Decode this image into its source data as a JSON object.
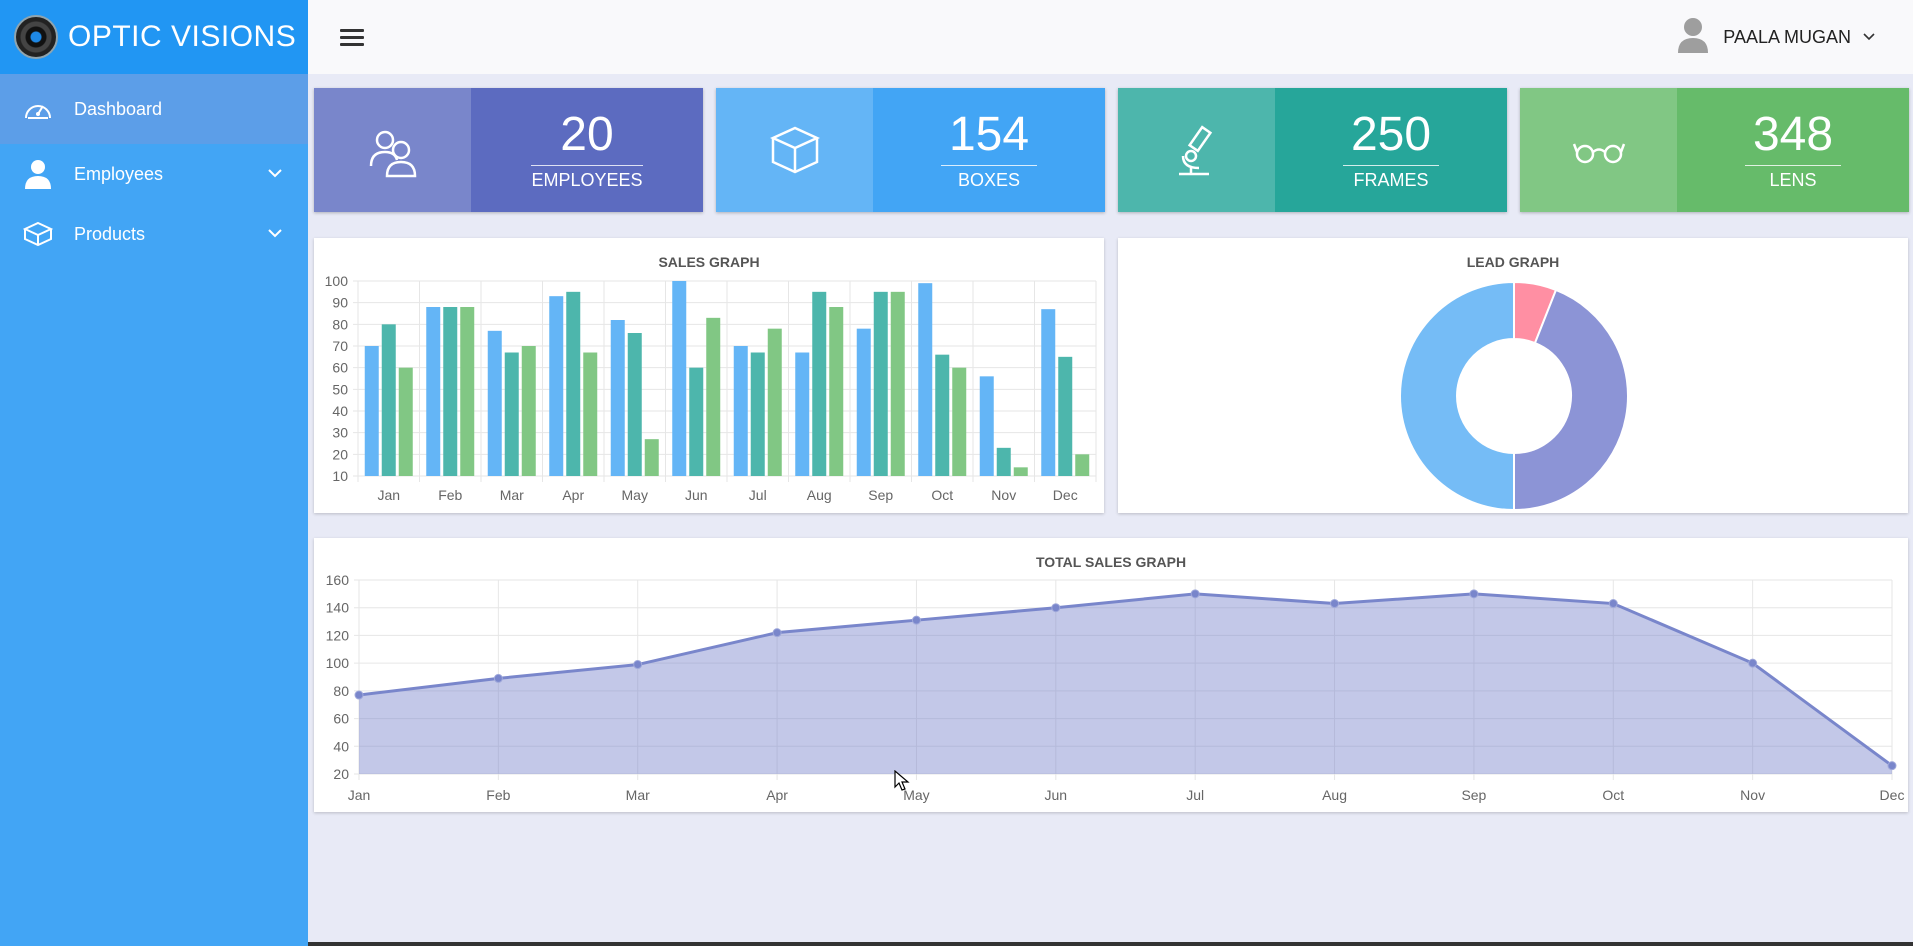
{
  "brand": {
    "name": "OPTIC VISIONS"
  },
  "sidebar": {
    "items": [
      {
        "label": "Dashboard",
        "icon": "speedometer-icon"
      },
      {
        "label": "Employees",
        "icon": "person-icon"
      },
      {
        "label": "Products",
        "icon": "box-icon"
      }
    ]
  },
  "topbar": {
    "user_name": "PAALA MUGAN"
  },
  "stats": [
    {
      "value": "20",
      "label": "EMPLOYEES",
      "icon": "users-icon",
      "icon_bg": "#7986cb",
      "bg": "#5c6bc0"
    },
    {
      "value": "154",
      "label": "BOXES",
      "icon": "cube-icon",
      "icon_bg": "#64b5f6",
      "bg": "#42a5f5"
    },
    {
      "value": "250",
      "label": "FRAMES",
      "icon": "microscope-icon",
      "icon_bg": "#4db6ac",
      "bg": "#26a69a"
    },
    {
      "value": "348",
      "label": "LENS",
      "icon": "glasses-icon",
      "icon_bg": "#81c784",
      "bg": "#66bb6a"
    }
  ],
  "chart_data": [
    {
      "type": "bar",
      "title": "SALES GRAPH",
      "categories": [
        "Jan",
        "Feb",
        "Mar",
        "Apr",
        "May",
        "Jun",
        "Jul",
        "Aug",
        "Sep",
        "Oct",
        "Nov",
        "Dec"
      ],
      "series": [
        {
          "values": [
            70,
            88,
            77,
            93,
            82,
            100,
            70,
            67,
            78,
            99,
            56,
            87
          ],
          "color": "#64b5f6"
        },
        {
          "values": [
            80,
            88,
            67,
            95,
            76,
            60,
            67,
            95,
            95,
            66,
            23,
            65
          ],
          "color": "#4db6ac"
        },
        {
          "values": [
            60,
            88,
            70,
            67,
            27,
            83,
            78,
            88,
            95,
            60,
            14,
            20
          ],
          "color": "#81c784"
        }
      ],
      "ylim": [
        10,
        100
      ],
      "yticks": [
        10,
        20,
        30,
        40,
        50,
        60,
        70,
        80,
        90,
        100
      ],
      "grid": true
    },
    {
      "type": "pie",
      "title": "LEAD GRAPH",
      "donut": true,
      "slices": [
        {
          "value": 6,
          "color": "#ff8fa3"
        },
        {
          "value": 44,
          "color": "#8c94d6"
        },
        {
          "value": 50,
          "color": "#75bcf6"
        }
      ]
    },
    {
      "type": "area",
      "title": "TOTAL SALES GRAPH",
      "x": [
        "Jan",
        "Feb",
        "Mar",
        "Apr",
        "May",
        "Jun",
        "Jul",
        "Aug",
        "Sep",
        "Oct",
        "Nov",
        "Dec"
      ],
      "series": [
        {
          "values": [
            77,
            89,
            99,
            122,
            131,
            140,
            150,
            143,
            150,
            143,
            100,
            26
          ],
          "color": "#7986cb"
        }
      ],
      "ylim": [
        20,
        160
      ],
      "yticks": [
        20,
        40,
        60,
        80,
        100,
        120,
        140,
        160
      ],
      "grid": true
    }
  ]
}
